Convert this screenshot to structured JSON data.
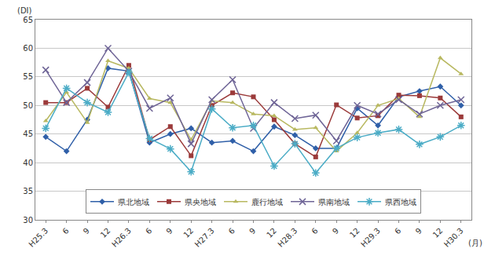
{
  "chart_data": {
    "type": "line",
    "x_label": "(月)",
    "y_label": "(DI)",
    "categories": [
      "H25.3",
      "6",
      "9",
      "12",
      "H26.3",
      "6",
      "9",
      "12",
      "H27.3",
      "6",
      "9",
      "12",
      "H28.3",
      "6",
      "9",
      "12",
      "H29.3",
      "6",
      "9",
      "12",
      "H30.3"
    ],
    "series": [
      {
        "name": "県北地域",
        "color": "#2f5fa8",
        "marker": "diamond",
        "line_style": "solid",
        "values": [
          44.5,
          42,
          47.5,
          56.5,
          56,
          43.5,
          45,
          46,
          43.5,
          43.8,
          42,
          46.3,
          44.8,
          42.5,
          42.5,
          49.5,
          46.5,
          51.5,
          52.5,
          53.3,
          50
        ]
      },
      {
        "name": "県央地域",
        "color": "#9b3a3a",
        "marker": "square",
        "line_style": "solid",
        "values": [
          50.5,
          50.5,
          53,
          49.7,
          57,
          44,
          46.3,
          41.2,
          50,
          52.2,
          51.5,
          47.5,
          43.3,
          41,
          50.1,
          47.8,
          48.2,
          51.8,
          51.7,
          51.3,
          48
        ]
      },
      {
        "name": "鹿行地域",
        "color": "#b8b860",
        "marker": "triangle",
        "line_style": "solid",
        "values": [
          47.3,
          52.3,
          47,
          57.8,
          56.5,
          51.2,
          50.5,
          44,
          50.8,
          50.5,
          48.5,
          48.2,
          45.8,
          46.1,
          42,
          45.2,
          50,
          51.2,
          48,
          58.3,
          55.5
        ]
      },
      {
        "name": "県南地域",
        "color": "#6e6496",
        "marker": "x",
        "line_style": "solid",
        "values": [
          56.2,
          50.5,
          54,
          60,
          56,
          49.5,
          51.3,
          43.3,
          51,
          54.5,
          46,
          50.5,
          47.7,
          48.3,
          43.8,
          50,
          48.5,
          51,
          48.5,
          50,
          51
        ]
      },
      {
        "name": "県西地域",
        "color": "#4bacc6",
        "marker": "star",
        "line_style": "solid",
        "values": [
          46,
          53,
          50.5,
          48.8,
          55.8,
          44.2,
          42.4,
          38.4,
          49.4,
          46.1,
          46.5,
          39.4,
          43.3,
          38.2,
          42.5,
          44.4,
          45.2,
          45.8,
          43.2,
          44.5,
          46.5
        ]
      }
    ],
    "ylim": [
      30,
      65
    ],
    "yticks": [
      30,
      35,
      40,
      45,
      50,
      55,
      60,
      65
    ],
    "grid": true,
    "legend": "bottom"
  }
}
